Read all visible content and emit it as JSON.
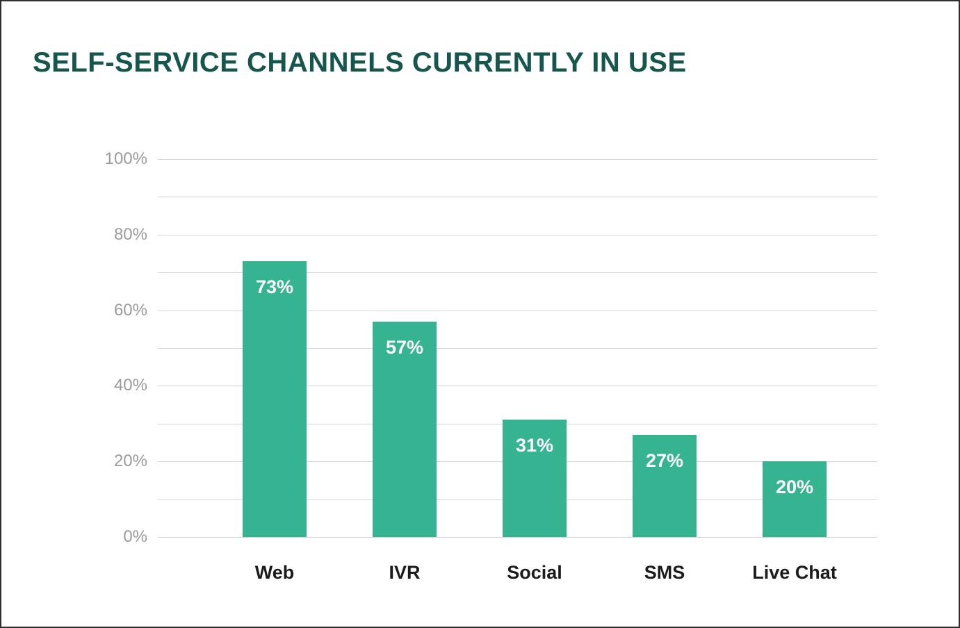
{
  "title": "SELF-SERVICE CHANNELS CURRENTLY IN USE",
  "chart_data": {
    "type": "bar",
    "title": "SELF-SERVICE CHANNELS CURRENTLY IN USE",
    "categories": [
      "Web",
      "IVR",
      "Social",
      "SMS",
      "Live Chat"
    ],
    "values": [
      73,
      57,
      31,
      27,
      20
    ],
    "value_labels": [
      "73%",
      "57%",
      "31%",
      "27%",
      "20%"
    ],
    "xlabel": "",
    "ylabel": "",
    "ylim": [
      0,
      100
    ],
    "y_ticks": [
      0,
      20,
      40,
      60,
      80,
      100
    ],
    "y_tick_labels": [
      "0%",
      "20%",
      "40%",
      "60%",
      "80%",
      "100%"
    ],
    "gridline_interval": 10,
    "grid": true,
    "legend": false,
    "bar_color": "#36b491",
    "title_color": "#16564c",
    "grid_color": "#d4d4d4",
    "y_label_color": "#9b9b9b",
    "x_label_color": "#1b1b1b",
    "value_label_color": "#ffffff"
  }
}
